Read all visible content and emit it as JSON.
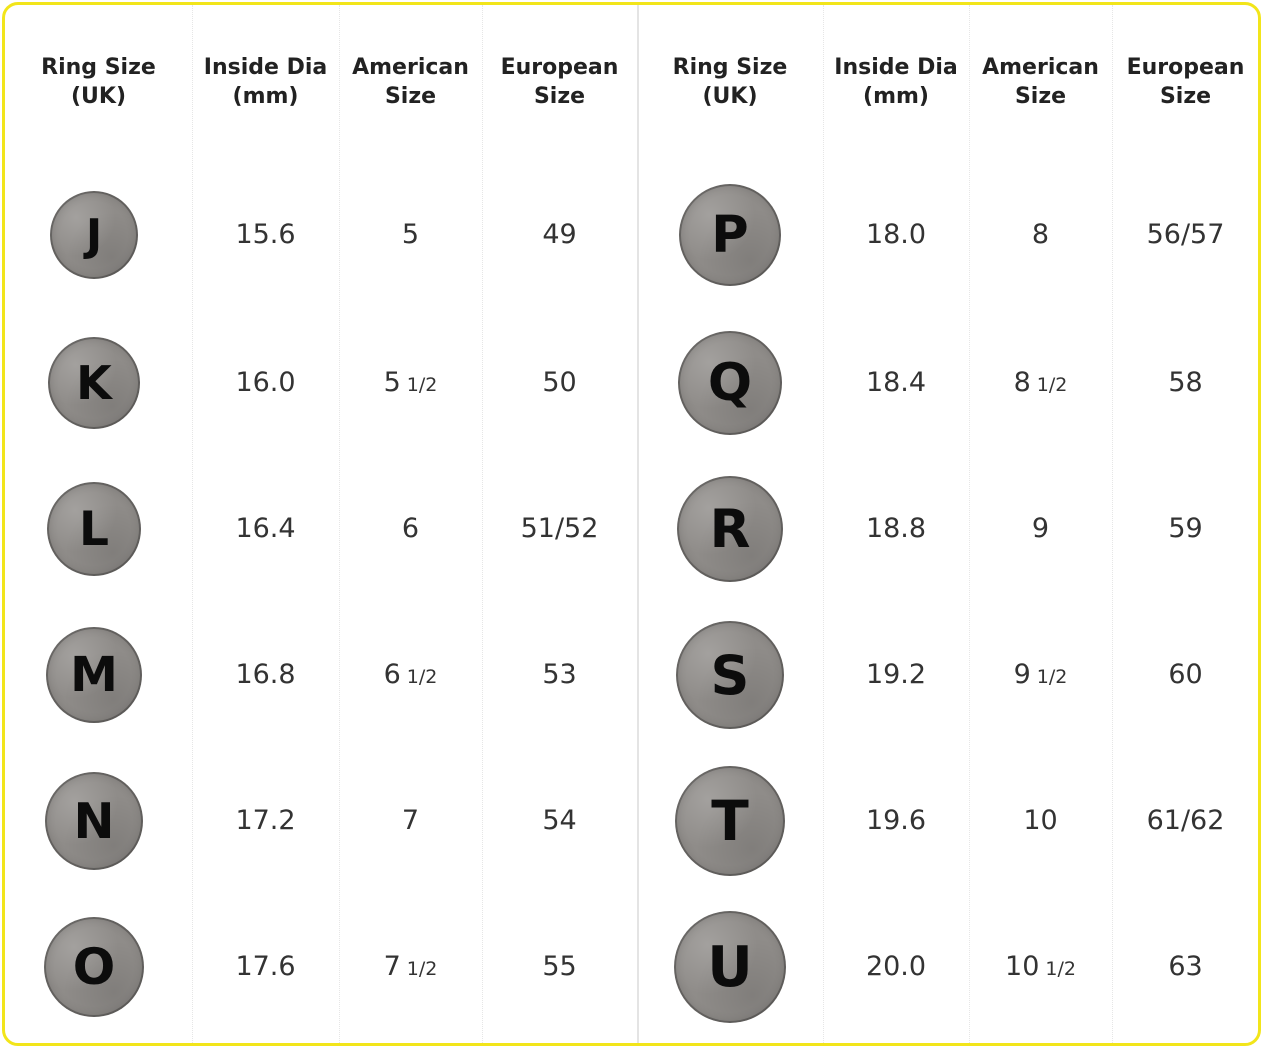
{
  "headers": [
    "Ring Size\n(UK)",
    "Inside Dia\n(mm)",
    "American\nSize",
    "European\nSize"
  ],
  "left": [
    {
      "uk": "J",
      "dia": "15.6",
      "us_whole": "5",
      "us_frac": "",
      "eu": "49"
    },
    {
      "uk": "K",
      "dia": "16.0",
      "us_whole": "5",
      "us_frac": "1/2",
      "eu": "50"
    },
    {
      "uk": "L",
      "dia": "16.4",
      "us_whole": "6",
      "us_frac": "",
      "eu": "51/52"
    },
    {
      "uk": "M",
      "dia": "16.8",
      "us_whole": "6",
      "us_frac": "1/2",
      "eu": "53"
    },
    {
      "uk": "N",
      "dia": "17.2",
      "us_whole": "7",
      "us_frac": "",
      "eu": "54"
    },
    {
      "uk": "O",
      "dia": "17.6",
      "us_whole": "7",
      "us_frac": "1/2",
      "eu": "55"
    }
  ],
  "right": [
    {
      "uk": "P",
      "dia": "18.0",
      "us_whole": "8",
      "us_frac": "",
      "eu": "56/57"
    },
    {
      "uk": "Q",
      "dia": "18.4",
      "us_whole": "8",
      "us_frac": "1/2",
      "eu": "58"
    },
    {
      "uk": "R",
      "dia": "18.8",
      "us_whole": "9",
      "us_frac": "",
      "eu": "59"
    },
    {
      "uk": "S",
      "dia": "19.2",
      "us_whole": "9",
      "us_frac": "1/2",
      "eu": "60"
    },
    {
      "uk": "T",
      "dia": "19.6",
      "us_whole": "10",
      "us_frac": "",
      "eu": "61/62"
    },
    {
      "uk": "U",
      "dia": "20.0",
      "us_whole": "10",
      "us_frac": "1/2",
      "eu": "63"
    }
  ]
}
